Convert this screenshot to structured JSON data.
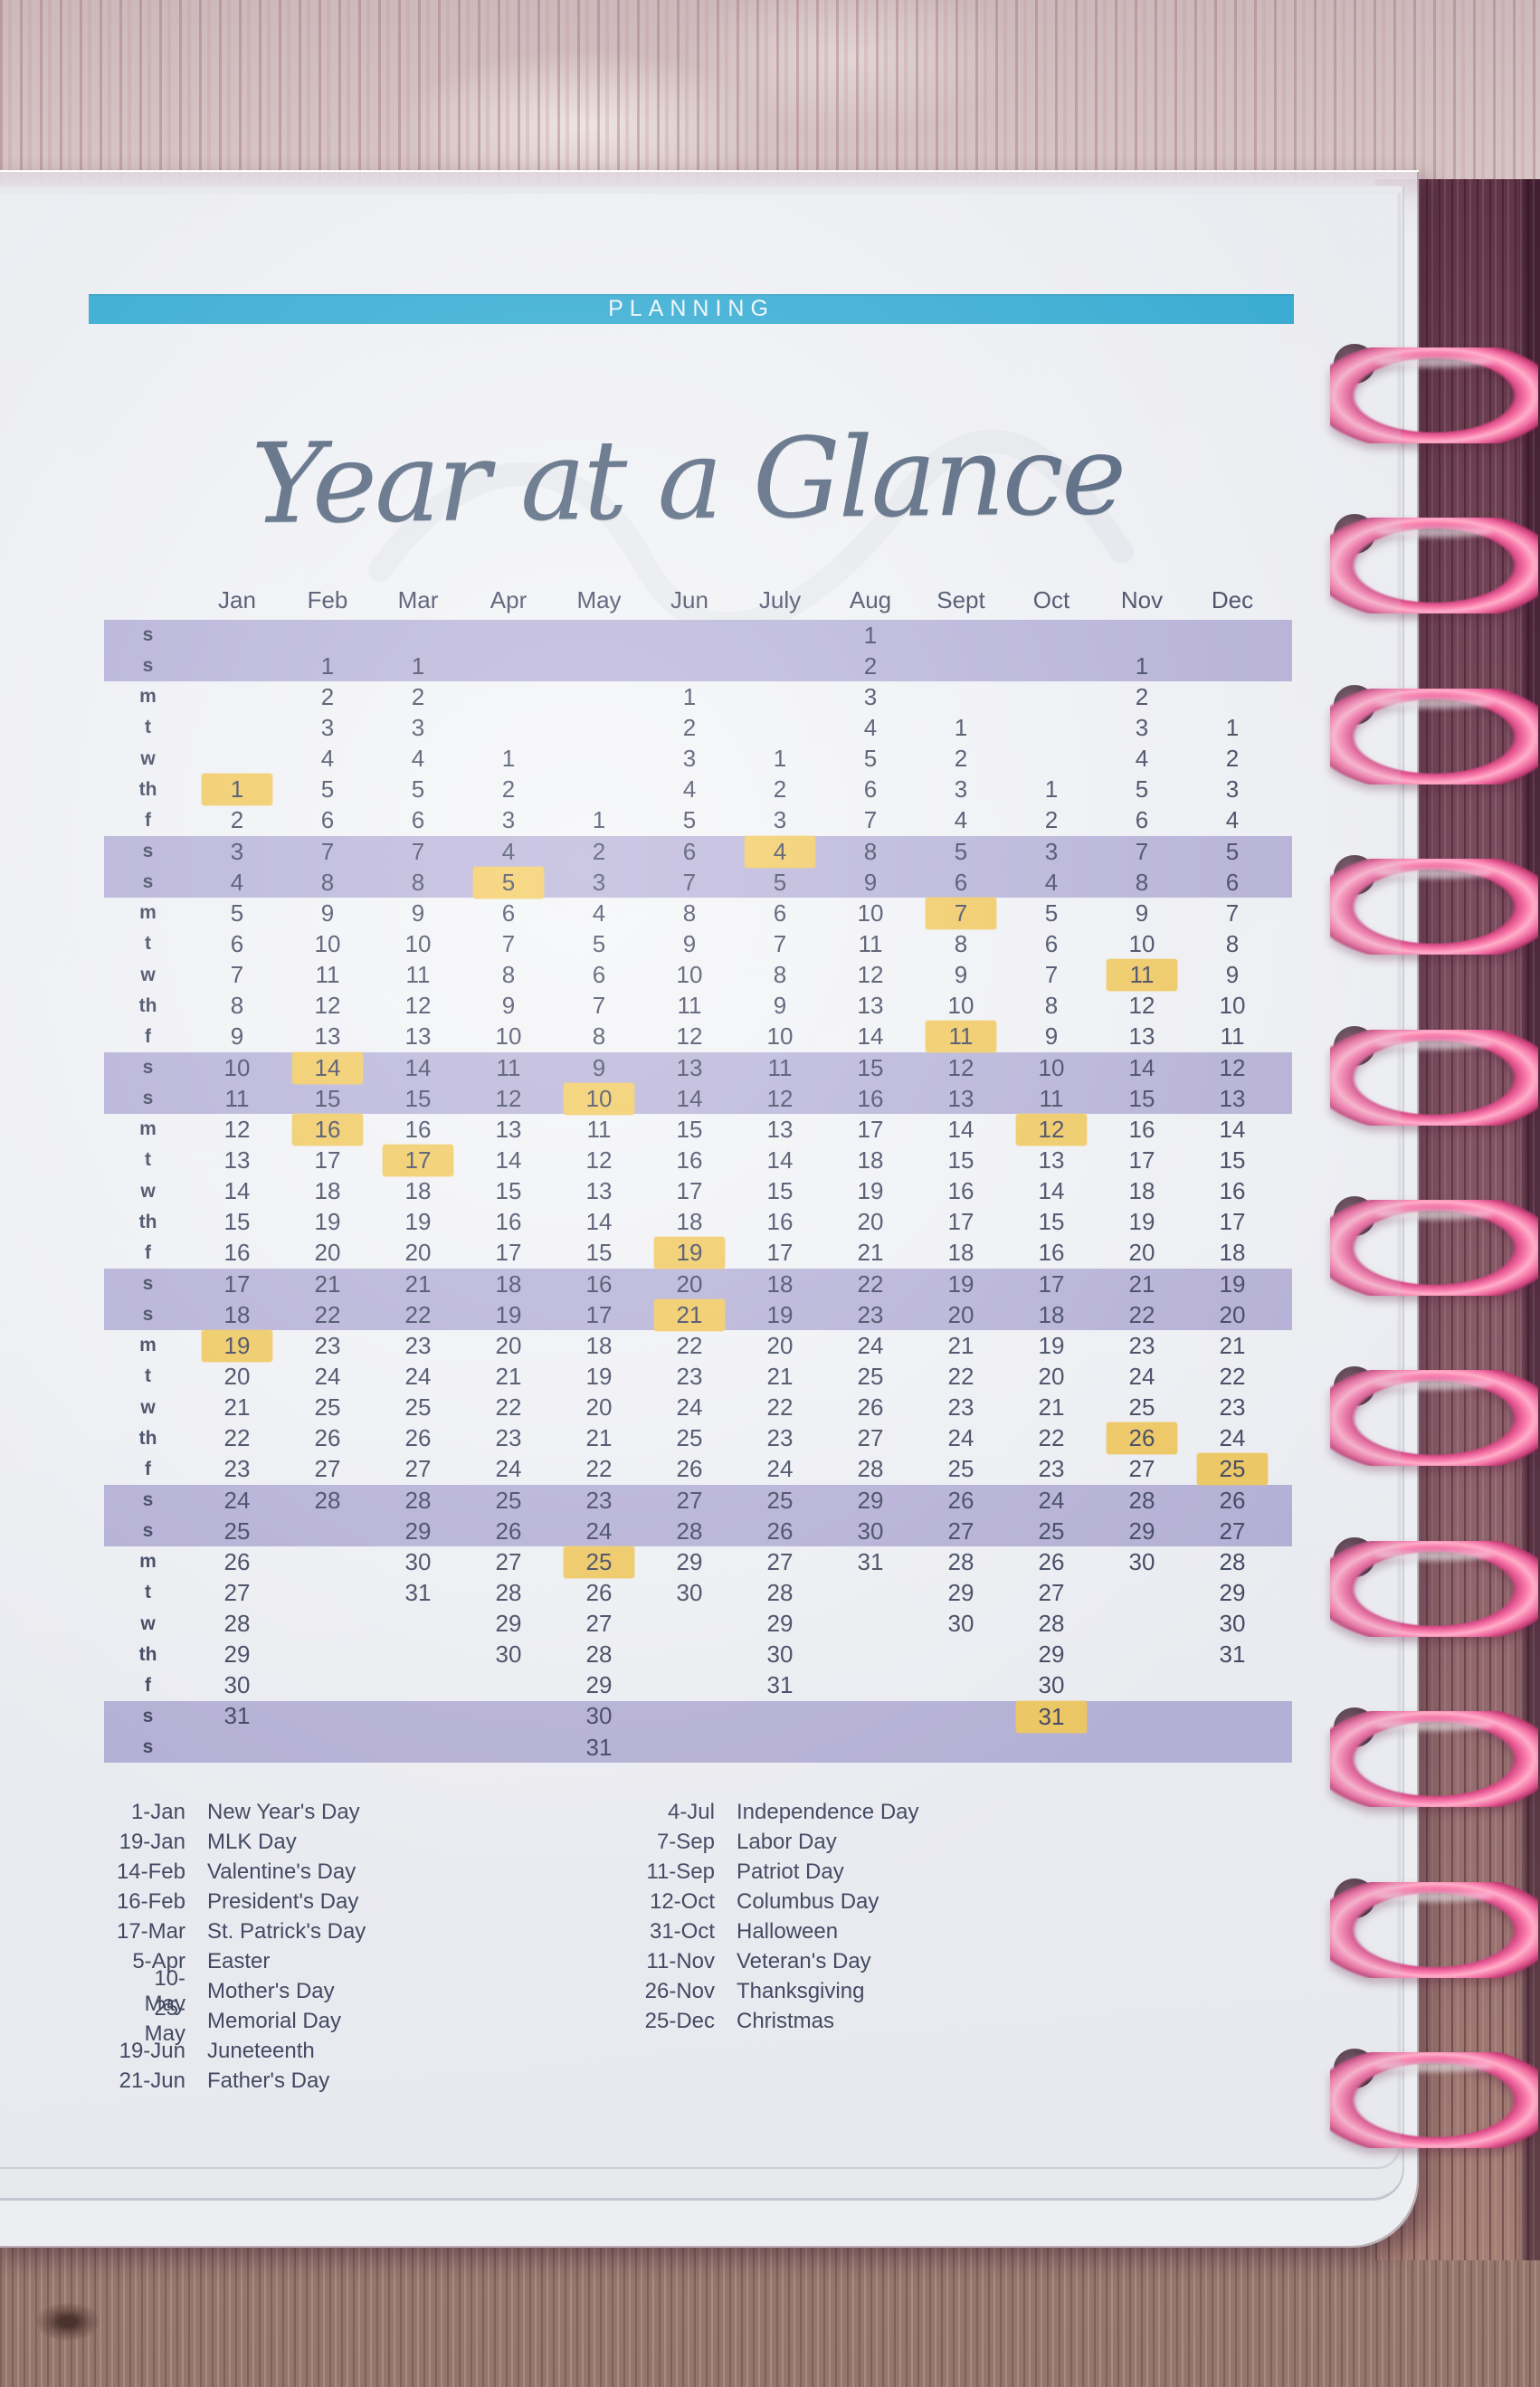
{
  "header": {
    "banner": "PLANNING",
    "title": "Year at a Glance"
  },
  "calendar": {
    "months": [
      "Jan",
      "Feb",
      "Mar",
      "Apr",
      "May",
      "Jun",
      "July",
      "Aug",
      "Sept",
      "Oct",
      "Nov",
      "Dec"
    ],
    "rows": [
      {
        "d": "s",
        "w": true,
        "c": [
          "",
          "",
          "",
          "",
          "",
          "",
          "",
          "1",
          "",
          "",
          "",
          ""
        ],
        "h": []
      },
      {
        "d": "s",
        "w": true,
        "c": [
          "",
          "1",
          "1",
          "",
          "",
          "",
          "",
          "2",
          "",
          "",
          "1",
          ""
        ],
        "h": []
      },
      {
        "d": "m",
        "w": false,
        "c": [
          "",
          "2",
          "2",
          "",
          "",
          "1",
          "",
          "3",
          "",
          "",
          "2",
          ""
        ],
        "h": []
      },
      {
        "d": "t",
        "w": false,
        "c": [
          "",
          "3",
          "3",
          "",
          "",
          "2",
          "",
          "4",
          "1",
          "",
          "3",
          "1"
        ],
        "h": []
      },
      {
        "d": "w",
        "w": false,
        "c": [
          "",
          "4",
          "4",
          "1",
          "",
          "3",
          "1",
          "5",
          "2",
          "",
          "4",
          "2"
        ],
        "h": []
      },
      {
        "d": "th",
        "w": false,
        "c": [
          "1",
          "5",
          "5",
          "2",
          "",
          "4",
          "2",
          "6",
          "3",
          "1",
          "5",
          "3"
        ],
        "h": [
          0
        ]
      },
      {
        "d": "f",
        "w": false,
        "c": [
          "2",
          "6",
          "6",
          "3",
          "1",
          "5",
          "3",
          "7",
          "4",
          "2",
          "6",
          "4"
        ],
        "h": []
      },
      {
        "d": "s",
        "w": true,
        "c": [
          "3",
          "7",
          "7",
          "4",
          "2",
          "6",
          "4",
          "8",
          "5",
          "3",
          "7",
          "5"
        ],
        "h": [
          6
        ]
      },
      {
        "d": "s",
        "w": true,
        "c": [
          "4",
          "8",
          "8",
          "5",
          "3",
          "7",
          "5",
          "9",
          "6",
          "4",
          "8",
          "6"
        ],
        "h": [
          3
        ]
      },
      {
        "d": "m",
        "w": false,
        "c": [
          "5",
          "9",
          "9",
          "6",
          "4",
          "8",
          "6",
          "10",
          "7",
          "5",
          "9",
          "7"
        ],
        "h": [
          8
        ]
      },
      {
        "d": "t",
        "w": false,
        "c": [
          "6",
          "10",
          "10",
          "7",
          "5",
          "9",
          "7",
          "11",
          "8",
          "6",
          "10",
          "8"
        ],
        "h": []
      },
      {
        "d": "w",
        "w": false,
        "c": [
          "7",
          "11",
          "11",
          "8",
          "6",
          "10",
          "8",
          "12",
          "9",
          "7",
          "11",
          "9"
        ],
        "h": [
          10
        ]
      },
      {
        "d": "th",
        "w": false,
        "c": [
          "8",
          "12",
          "12",
          "9",
          "7",
          "11",
          "9",
          "13",
          "10",
          "8",
          "12",
          "10"
        ],
        "h": []
      },
      {
        "d": "f",
        "w": false,
        "c": [
          "9",
          "13",
          "13",
          "10",
          "8",
          "12",
          "10",
          "14",
          "11",
          "9",
          "13",
          "11"
        ],
        "h": [
          8
        ]
      },
      {
        "d": "s",
        "w": true,
        "c": [
          "10",
          "14",
          "14",
          "11",
          "9",
          "13",
          "11",
          "15",
          "12",
          "10",
          "14",
          "12"
        ],
        "h": [
          1
        ]
      },
      {
        "d": "s",
        "w": true,
        "c": [
          "11",
          "15",
          "15",
          "12",
          "10",
          "14",
          "12",
          "16",
          "13",
          "11",
          "15",
          "13"
        ],
        "h": [
          4
        ]
      },
      {
        "d": "m",
        "w": false,
        "c": [
          "12",
          "16",
          "16",
          "13",
          "11",
          "15",
          "13",
          "17",
          "14",
          "12",
          "16",
          "14"
        ],
        "h": [
          1,
          9
        ]
      },
      {
        "d": "t",
        "w": false,
        "c": [
          "13",
          "17",
          "17",
          "14",
          "12",
          "16",
          "14",
          "18",
          "15",
          "13",
          "17",
          "15"
        ],
        "h": [
          2
        ]
      },
      {
        "d": "w",
        "w": false,
        "c": [
          "14",
          "18",
          "18",
          "15",
          "13",
          "17",
          "15",
          "19",
          "16",
          "14",
          "18",
          "16"
        ],
        "h": []
      },
      {
        "d": "th",
        "w": false,
        "c": [
          "15",
          "19",
          "19",
          "16",
          "14",
          "18",
          "16",
          "20",
          "17",
          "15",
          "19",
          "17"
        ],
        "h": []
      },
      {
        "d": "f",
        "w": false,
        "c": [
          "16",
          "20",
          "20",
          "17",
          "15",
          "19",
          "17",
          "21",
          "18",
          "16",
          "20",
          "18"
        ],
        "h": [
          5
        ]
      },
      {
        "d": "s",
        "w": true,
        "c": [
          "17",
          "21",
          "21",
          "18",
          "16",
          "20",
          "18",
          "22",
          "19",
          "17",
          "21",
          "19"
        ],
        "h": []
      },
      {
        "d": "s",
        "w": true,
        "c": [
          "18",
          "22",
          "22",
          "19",
          "17",
          "21",
          "19",
          "23",
          "20",
          "18",
          "22",
          "20"
        ],
        "h": [
          5
        ]
      },
      {
        "d": "m",
        "w": false,
        "c": [
          "19",
          "23",
          "23",
          "20",
          "18",
          "22",
          "20",
          "24",
          "21",
          "19",
          "23",
          "21"
        ],
        "h": [
          0
        ]
      },
      {
        "d": "t",
        "w": false,
        "c": [
          "20",
          "24",
          "24",
          "21",
          "19",
          "23",
          "21",
          "25",
          "22",
          "20",
          "24",
          "22"
        ],
        "h": []
      },
      {
        "d": "w",
        "w": false,
        "c": [
          "21",
          "25",
          "25",
          "22",
          "20",
          "24",
          "22",
          "26",
          "23",
          "21",
          "25",
          "23"
        ],
        "h": []
      },
      {
        "d": "th",
        "w": false,
        "c": [
          "22",
          "26",
          "26",
          "23",
          "21",
          "25",
          "23",
          "27",
          "24",
          "22",
          "26",
          "24"
        ],
        "h": [
          10
        ]
      },
      {
        "d": "f",
        "w": false,
        "c": [
          "23",
          "27",
          "27",
          "24",
          "22",
          "26",
          "24",
          "28",
          "25",
          "23",
          "27",
          "25"
        ],
        "h": [
          11
        ]
      },
      {
        "d": "s",
        "w": true,
        "c": [
          "24",
          "28",
          "28",
          "25",
          "23",
          "27",
          "25",
          "29",
          "26",
          "24",
          "28",
          "26"
        ],
        "h": []
      },
      {
        "d": "s",
        "w": true,
        "c": [
          "25",
          "",
          "29",
          "26",
          "24",
          "28",
          "26",
          "30",
          "27",
          "25",
          "29",
          "27"
        ],
        "h": []
      },
      {
        "d": "m",
        "w": false,
        "c": [
          "26",
          "",
          "30",
          "27",
          "25",
          "29",
          "27",
          "31",
          "28",
          "26",
          "30",
          "28"
        ],
        "h": [
          4
        ]
      },
      {
        "d": "t",
        "w": false,
        "c": [
          "27",
          "",
          "31",
          "28",
          "26",
          "30",
          "28",
          "",
          "29",
          "27",
          "",
          "29"
        ],
        "h": []
      },
      {
        "d": "w",
        "w": false,
        "c": [
          "28",
          "",
          "",
          "29",
          "27",
          "",
          "29",
          "",
          "30",
          "28",
          "",
          "30"
        ],
        "h": []
      },
      {
        "d": "th",
        "w": false,
        "c": [
          "29",
          "",
          "",
          "30",
          "28",
          "",
          "30",
          "",
          "",
          "29",
          "",
          "31"
        ],
        "h": []
      },
      {
        "d": "f",
        "w": false,
        "c": [
          "30",
          "",
          "",
          "",
          "29",
          "",
          "31",
          "",
          "",
          "30",
          "",
          ""
        ],
        "h": []
      },
      {
        "d": "s",
        "w": true,
        "c": [
          "31",
          "",
          "",
          "",
          "30",
          "",
          "",
          "",
          "",
          "31",
          "",
          ""
        ],
        "h": [
          9
        ]
      },
      {
        "d": "s",
        "w": true,
        "c": [
          "",
          "",
          "",
          "",
          "31",
          "",
          "",
          "",
          "",
          "",
          "",
          ""
        ],
        "h": []
      }
    ]
  },
  "holidays": {
    "left": [
      {
        "date": "1-Jan",
        "name": "New Year's Day"
      },
      {
        "date": "19-Jan",
        "name": "MLK Day"
      },
      {
        "date": "14-Feb",
        "name": "Valentine's Day"
      },
      {
        "date": "16-Feb",
        "name": "President's Day"
      },
      {
        "date": "17-Mar",
        "name": "St. Patrick's Day"
      },
      {
        "date": "5-Apr",
        "name": "Easter"
      },
      {
        "date": "10-May",
        "name": "Mother's Day"
      },
      {
        "date": "25-May",
        "name": "Memorial Day"
      },
      {
        "date": "19-Jun",
        "name": "Juneteenth"
      },
      {
        "date": "21-Jun",
        "name": "Father's Day"
      }
    ],
    "right": [
      {
        "date": "4-Jul",
        "name": "Independence Day"
      },
      {
        "date": "7-Sep",
        "name": "Labor Day"
      },
      {
        "date": "11-Sep",
        "name": "Patriot Day"
      },
      {
        "date": "12-Oct",
        "name": "Columbus Day"
      },
      {
        "date": "31-Oct",
        "name": "Halloween"
      },
      {
        "date": "11-Nov",
        "name": "Veteran's Day"
      },
      {
        "date": "26-Nov",
        "name": "Thanksgiving"
      },
      {
        "date": "25-Dec",
        "name": "Christmas"
      }
    ]
  },
  "binder": {
    "disc_count": 11
  },
  "colors": {
    "banner_teal": "#18a4d0",
    "weekend_band_purple": "#b0aad5",
    "holiday_highlight_yellow": "#f3c54a",
    "ink_navy": "#262d49",
    "title_navy": "#3c506b",
    "disc_pink": "#f2679e",
    "page_white": "#f4f5f8"
  }
}
